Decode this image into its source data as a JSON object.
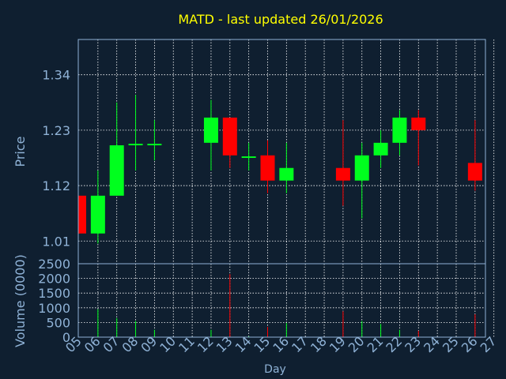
{
  "chart_data": {
    "type": "candlestick",
    "title": "MATD - last updated 26/01/2026",
    "xlabel": "Day",
    "ylabel_price": "Price",
    "ylabel_volume": "Volume (0000)",
    "price_ticks": [
      "1.01",
      "1.12",
      "1.23",
      "1.34"
    ],
    "price_tick_values": [
      1.01,
      1.12,
      1.23,
      1.34
    ],
    "price_ylim": [
      0.965,
      1.41
    ],
    "volume_ticks": [
      "0",
      "500",
      "1000",
      "1500",
      "2000",
      "2500"
    ],
    "volume_tick_values": [
      0,
      500,
      1000,
      1500,
      2000,
      2500
    ],
    "volume_ylim": [
      0,
      2500
    ],
    "x_ticks": [
      "05",
      "06",
      "07",
      "08",
      "09",
      "10",
      "11",
      "12",
      "13",
      "14",
      "15",
      "16",
      "17",
      "18",
      "19",
      "20",
      "21",
      "22",
      "23",
      "24",
      "25",
      "26",
      "27"
    ],
    "grid": true,
    "colors": {
      "up": "#00ff1e",
      "down": "#ff0000",
      "text": "#8fb2d6",
      "title": "#ffff00",
      "grid": "#ffffff",
      "axis": "#8fb2d6"
    },
    "candles": [
      {
        "day": "05",
        "open": 1.1,
        "high": 1.1,
        "low": 1.025,
        "close": 1.025,
        "volume": 0
      },
      {
        "day": "06",
        "open": 1.025,
        "high": 1.15,
        "low": 1.005,
        "close": 1.1,
        "volume": 950
      },
      {
        "day": "07",
        "open": 1.1,
        "high": 1.285,
        "low": 1.1,
        "close": 1.2,
        "volume": 650
      },
      {
        "day": "08",
        "open": 1.2,
        "high": 1.3,
        "low": 1.15,
        "close": 1.203,
        "volume": 550
      },
      {
        "day": "09",
        "open": 1.2,
        "high": 1.25,
        "low": 1.17,
        "close": 1.203,
        "volume": 250
      },
      {
        "day": "12",
        "open": 1.205,
        "high": 1.29,
        "low": 1.15,
        "close": 1.255,
        "volume": 250
      },
      {
        "day": "13",
        "open": 1.255,
        "high": 1.255,
        "low": 1.155,
        "close": 1.18,
        "volume": 2150
      },
      {
        "day": "14",
        "open": 1.175,
        "high": 1.205,
        "low": 1.15,
        "close": 1.178,
        "volume": 30
      },
      {
        "day": "15",
        "open": 1.18,
        "high": 1.21,
        "low": 1.105,
        "close": 1.13,
        "volume": 350
      },
      {
        "day": "16",
        "open": 1.13,
        "high": 1.205,
        "low": 1.105,
        "close": 1.155,
        "volume": 480
      },
      {
        "day": "19",
        "open": 1.155,
        "high": 1.25,
        "low": 1.08,
        "close": 1.13,
        "volume": 880
      },
      {
        "day": "20",
        "open": 1.13,
        "high": 1.205,
        "low": 1.055,
        "close": 1.18,
        "volume": 550
      },
      {
        "day": "21",
        "open": 1.18,
        "high": 1.23,
        "low": 1.155,
        "close": 1.205,
        "volume": 450
      },
      {
        "day": "22",
        "open": 1.205,
        "high": 1.27,
        "low": 1.18,
        "close": 1.255,
        "volume": 250
      },
      {
        "day": "23",
        "open": 1.255,
        "high": 1.27,
        "low": 1.16,
        "close": 1.23,
        "volume": 220
      },
      {
        "day": "26",
        "open": 1.165,
        "high": 1.25,
        "low": 1.11,
        "close": 1.13,
        "volume": 780
      }
    ]
  }
}
